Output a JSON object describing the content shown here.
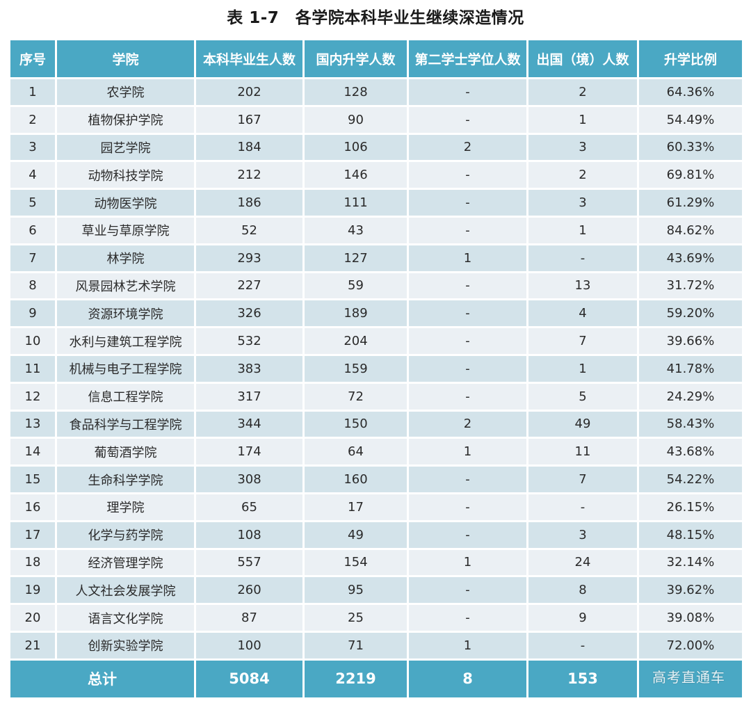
{
  "title": "表 1-7　各学院本科毕业生继续深造情况",
  "table": {
    "headers": [
      "序号",
      "学院",
      "本科毕业生人数",
      "国内升学人数",
      "第二学士学位人数",
      "出国（境）人数",
      "升学比例"
    ],
    "rows": [
      [
        "1",
        "农学院",
        "202",
        "128",
        "-",
        "2",
        "64.36%"
      ],
      [
        "2",
        "植物保护学院",
        "167",
        "90",
        "-",
        "1",
        "54.49%"
      ],
      [
        "3",
        "园艺学院",
        "184",
        "106",
        "2",
        "3",
        "60.33%"
      ],
      [
        "4",
        "动物科技学院",
        "212",
        "146",
        "-",
        "2",
        "69.81%"
      ],
      [
        "5",
        "动物医学院",
        "186",
        "111",
        "-",
        "3",
        "61.29%"
      ],
      [
        "6",
        "草业与草原学院",
        "52",
        "43",
        "-",
        "1",
        "84.62%"
      ],
      [
        "7",
        "林学院",
        "293",
        "127",
        "1",
        "-",
        "43.69%"
      ],
      [
        "8",
        "风景园林艺术学院",
        "227",
        "59",
        "-",
        "13",
        "31.72%"
      ],
      [
        "9",
        "资源环境学院",
        "326",
        "189",
        "-",
        "4",
        "59.20%"
      ],
      [
        "10",
        "水利与建筑工程学院",
        "532",
        "204",
        "-",
        "7",
        "39.66%"
      ],
      [
        "11",
        "机械与电子工程学院",
        "383",
        "159",
        "-",
        "1",
        "41.78%"
      ],
      [
        "12",
        "信息工程学院",
        "317",
        "72",
        "-",
        "5",
        "24.29%"
      ],
      [
        "13",
        "食品科学与工程学院",
        "344",
        "150",
        "2",
        "49",
        "58.43%"
      ],
      [
        "14",
        "葡萄酒学院",
        "174",
        "64",
        "1",
        "11",
        "43.68%"
      ],
      [
        "15",
        "生命科学学院",
        "308",
        "160",
        "-",
        "7",
        "54.22%"
      ],
      [
        "16",
        "理学院",
        "65",
        "17",
        "-",
        "-",
        "26.15%"
      ],
      [
        "17",
        "化学与药学院",
        "108",
        "49",
        "-",
        "3",
        "48.15%"
      ],
      [
        "18",
        "经济管理学院",
        "557",
        "154",
        "1",
        "24",
        "32.14%"
      ],
      [
        "19",
        "人文社会发展学院",
        "260",
        "95",
        "-",
        "8",
        "39.62%"
      ],
      [
        "20",
        "语言文化学院",
        "87",
        "25",
        "-",
        "9",
        "39.08%"
      ],
      [
        "21",
        "创新实验学院",
        "100",
        "71",
        "1",
        "-",
        "72.00%"
      ]
    ],
    "total": {
      "label": "总计",
      "graduates": "5084",
      "domestic": "2219",
      "second_degree": "8",
      "abroad": "153",
      "ratio": ""
    }
  },
  "watermark": "高考直通车",
  "colors": {
    "header_bg": "#4aa8c4",
    "row_odd_bg": "#d3e3ea",
    "row_even_bg": "#ebf0f4",
    "header_text": "#ffffff"
  }
}
